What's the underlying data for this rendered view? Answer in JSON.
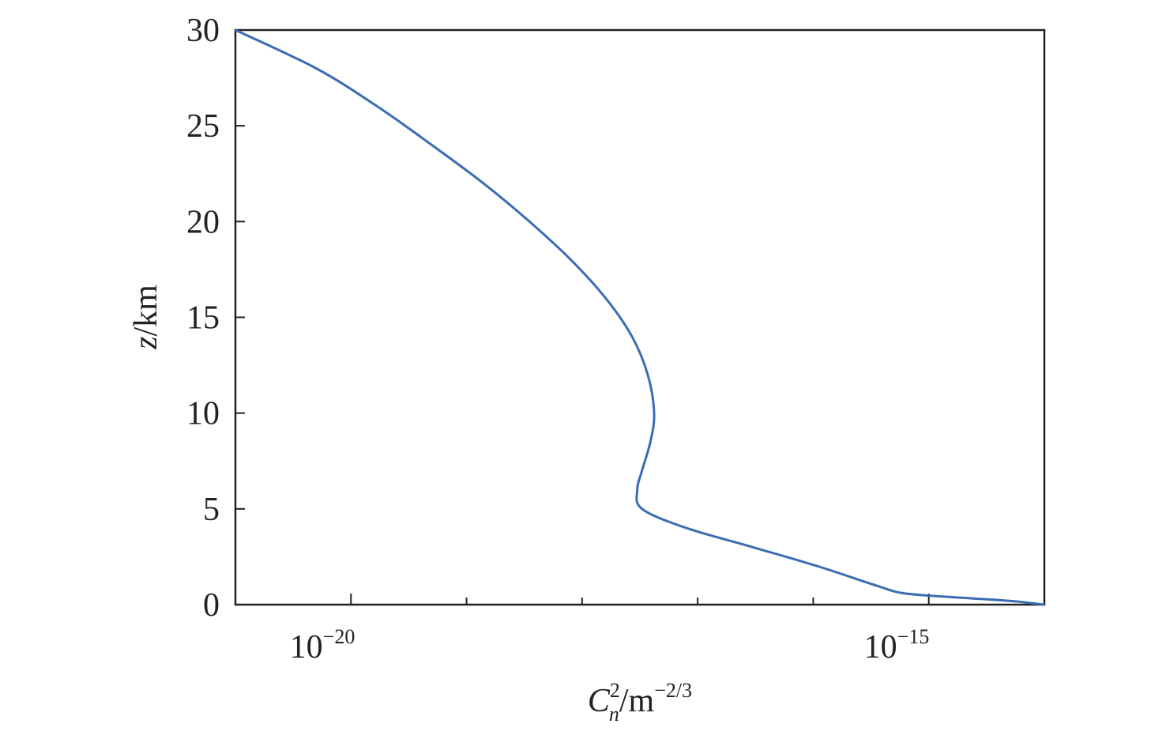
{
  "chart_data": {
    "type": "line",
    "title": "",
    "xscale": "log",
    "xlim": [
      1e-21,
      1e-14
    ],
    "ylim": [
      0,
      30
    ],
    "grid": false,
    "xlabel": {
      "main": "C",
      "sub": "n",
      "sup": "2",
      "unit": "/m",
      "unit_sup": "−2/3"
    },
    "ylabel": {
      "var": "z",
      "unit": "/km"
    },
    "x_tick_labels": [
      {
        "base": "10",
        "exp": "−20"
      },
      {
        "base": "10",
        "exp": "−15"
      }
    ],
    "y_ticks": [
      0,
      5,
      10,
      15,
      20,
      25,
      30
    ],
    "y_tick_labels": [
      "0",
      "5",
      "10",
      "15",
      "20",
      "25",
      "30"
    ],
    "series": [
      {
        "color": "#3b6cb4",
        "points": [
          [
            1e-21,
            30
          ],
          [
            5e-21,
            28
          ],
          [
            1.7e-20,
            26
          ],
          [
            5e-20,
            24
          ],
          [
            1.4e-19,
            22
          ],
          [
            3.5e-19,
            20
          ],
          [
            8e-19,
            18
          ],
          [
            1.6e-18,
            16
          ],
          [
            2.7e-18,
            14
          ],
          [
            3.7e-18,
            12
          ],
          [
            4.2e-18,
            10
          ],
          [
            3.9e-18,
            8.5
          ],
          [
            3.3e-18,
            7
          ],
          [
            3e-18,
            6
          ],
          [
            3.3e-18,
            5
          ],
          [
            8e-18,
            4
          ],
          [
            3e-17,
            3
          ],
          [
            1.1e-16,
            2
          ],
          [
            3.5e-16,
            1
          ],
          [
            6e-16,
            0.6
          ],
          [
            1.5e-15,
            0.4
          ],
          [
            5e-15,
            0.2
          ],
          [
            1e-14,
            0
          ]
        ]
      }
    ]
  }
}
